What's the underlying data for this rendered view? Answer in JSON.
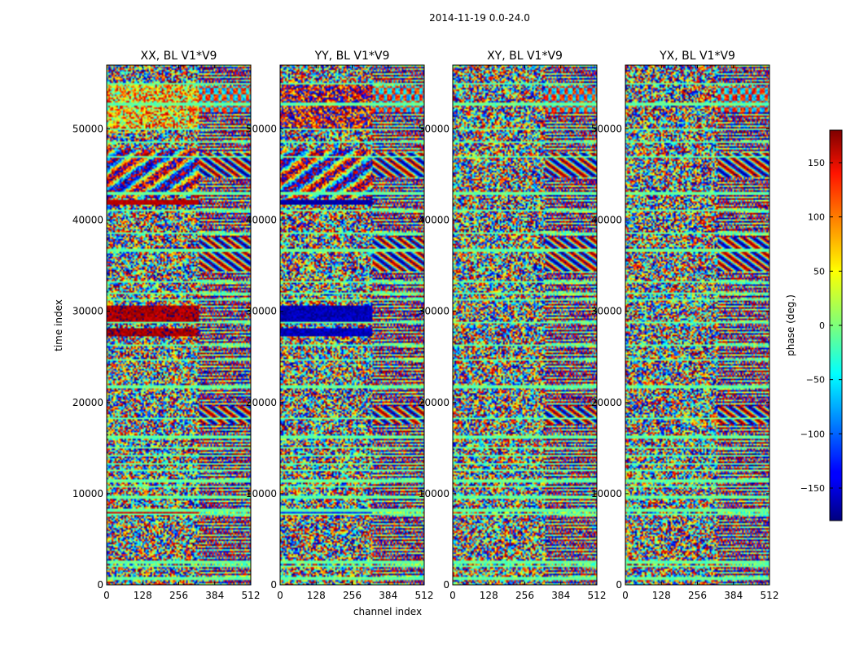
{
  "chart_data": {
    "type": "heatmap",
    "title": "2014-11-19 0.0-24.0",
    "xlabel": "channel index",
    "ylabel": "time index",
    "x_range": [
      0,
      512
    ],
    "y_range": [
      0,
      57000
    ],
    "x_ticks": [
      0,
      128,
      256,
      384,
      512
    ],
    "y_ticks": [
      0,
      10000,
      20000,
      30000,
      40000,
      50000
    ],
    "panels": [
      {
        "title": "XX, BL V1*V9",
        "pol": "XX"
      },
      {
        "title": "YY, BL V1*V9",
        "pol": "YY"
      },
      {
        "title": "XY, BL V1*V9",
        "pol": "XY"
      },
      {
        "title": "YX, BL V1*V9",
        "pol": "YX"
      }
    ],
    "colorbar": {
      "label": "phase (deg.)",
      "range": [
        -180,
        180
      ],
      "ticks": [
        -150,
        -100,
        -50,
        0,
        50,
        100,
        150
      ],
      "tick_labels": [
        "−150",
        "−100",
        "−50",
        "0",
        "50",
        "100",
        "150"
      ],
      "colormap": "jet"
    }
  }
}
